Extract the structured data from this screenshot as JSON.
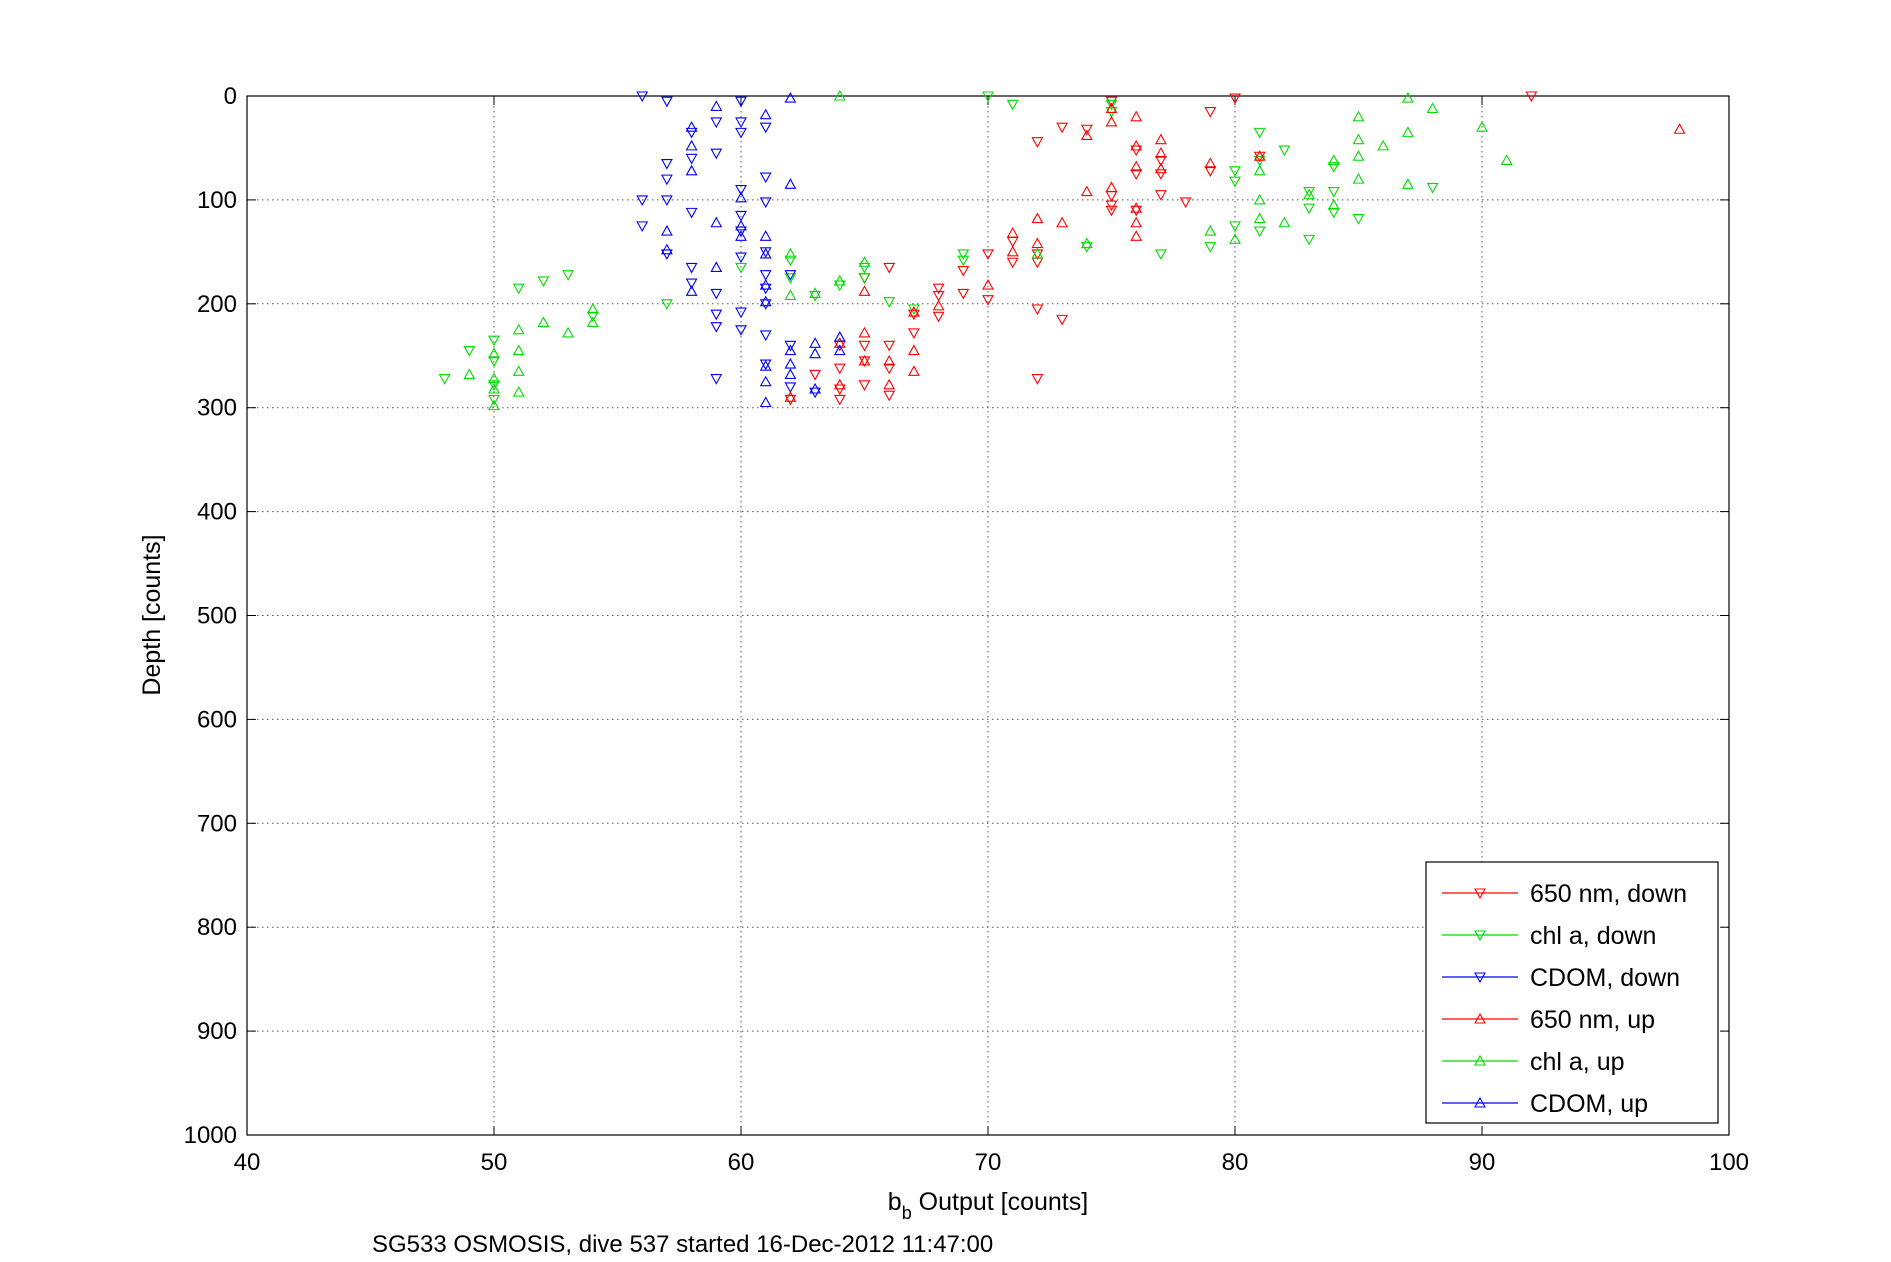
{
  "chart_data": {
    "type": "scatter",
    "xlabel_main": "b",
    "xlabel_sub": "b",
    "xlabel_rest": " Output [counts]",
    "ylabel": "Depth [counts]",
    "caption": "SG533 OSMOSIS, dive 537 started 16-Dec-2012 11:47:00",
    "xlim": [
      40,
      100
    ],
    "ylim": [
      0,
      1000
    ],
    "y_reversed": true,
    "grid": true,
    "legend_position": "bottom-right",
    "x_ticks": [
      "40",
      "50",
      "60",
      "70",
      "80",
      "90",
      "100"
    ],
    "y_ticks": [
      "0",
      "100",
      "200",
      "300",
      "400",
      "500",
      "600",
      "700",
      "800",
      "900",
      "1000"
    ],
    "series": [
      {
        "name": "650 nm, down",
        "color": "#ff0000",
        "marker": "triangle-down",
        "points": [
          [
            62,
            292
          ],
          [
            63,
            268
          ],
          [
            64,
            262
          ],
          [
            64,
            282
          ],
          [
            64,
            292
          ],
          [
            64,
            240
          ],
          [
            65,
            255
          ],
          [
            65,
            240
          ],
          [
            65,
            278
          ],
          [
            65,
            175
          ],
          [
            66,
            240
          ],
          [
            66,
            262
          ],
          [
            66,
            288
          ],
          [
            66,
            165
          ],
          [
            67,
            228
          ],
          [
            67,
            210
          ],
          [
            68,
            192
          ],
          [
            68,
            212
          ],
          [
            68,
            185
          ],
          [
            69,
            190
          ],
          [
            69,
            168
          ],
          [
            70,
            196
          ],
          [
            70,
            152
          ],
          [
            71,
            140
          ],
          [
            71,
            160
          ],
          [
            72,
            205
          ],
          [
            72,
            272
          ],
          [
            72,
            160
          ],
          [
            72,
            152
          ],
          [
            72,
            44
          ],
          [
            73,
            215
          ],
          [
            73,
            30
          ],
          [
            74,
            32
          ],
          [
            75,
            96
          ],
          [
            75,
            105
          ],
          [
            75,
            110
          ],
          [
            75,
            5
          ],
          [
            76,
            110
          ],
          [
            76,
            75
          ],
          [
            76,
            52
          ],
          [
            77,
            62
          ],
          [
            77,
            95
          ],
          [
            77,
            75
          ],
          [
            78,
            102
          ],
          [
            79,
            15
          ],
          [
            79,
            72
          ],
          [
            80,
            2
          ],
          [
            81,
            58
          ],
          [
            92,
            0
          ]
        ]
      },
      {
        "name": "chl a, down",
        "color": "#00dd00",
        "marker": "triangle-down",
        "points": [
          [
            48,
            272
          ],
          [
            49,
            245
          ],
          [
            50,
            235
          ],
          [
            50,
            255
          ],
          [
            50,
            278
          ],
          [
            50,
            292
          ],
          [
            51,
            185
          ],
          [
            52,
            178
          ],
          [
            53,
            172
          ],
          [
            54,
            212
          ],
          [
            57,
            200
          ],
          [
            60,
            165
          ],
          [
            62,
            175
          ],
          [
            62,
            158
          ],
          [
            63,
            192
          ],
          [
            64,
            182
          ],
          [
            65,
            165
          ],
          [
            65,
            175
          ],
          [
            66,
            198
          ],
          [
            67,
            205
          ],
          [
            69,
            158
          ],
          [
            69,
            152
          ],
          [
            70,
            0
          ],
          [
            71,
            8
          ],
          [
            74,
            145
          ],
          [
            75,
            8
          ],
          [
            75,
            15
          ],
          [
            77,
            152
          ],
          [
            79,
            145
          ],
          [
            80,
            125
          ],
          [
            80,
            72
          ],
          [
            80,
            82
          ],
          [
            81,
            35
          ],
          [
            81,
            62
          ],
          [
            81,
            130
          ],
          [
            82,
            52
          ],
          [
            83,
            92
          ],
          [
            83,
            108
          ],
          [
            83,
            138
          ],
          [
            84,
            92
          ],
          [
            84,
            112
          ],
          [
            84,
            68
          ],
          [
            85,
            118
          ],
          [
            88,
            88
          ]
        ]
      },
      {
        "name": "CDOM, down",
        "color": "#0000ff",
        "marker": "triangle-down",
        "points": [
          [
            56,
            0
          ],
          [
            56,
            100
          ],
          [
            56,
            125
          ],
          [
            57,
            5
          ],
          [
            57,
            65
          ],
          [
            57,
            80
          ],
          [
            57,
            100
          ],
          [
            57,
            152
          ],
          [
            58,
            35
          ],
          [
            58,
            60
          ],
          [
            58,
            112
          ],
          [
            58,
            165
          ],
          [
            58,
            180
          ],
          [
            59,
            25
          ],
          [
            59,
            55
          ],
          [
            59,
            190
          ],
          [
            59,
            210
          ],
          [
            59,
            222
          ],
          [
            59,
            272
          ],
          [
            60,
            5
          ],
          [
            60,
            25
          ],
          [
            60,
            35
          ],
          [
            60,
            90
          ],
          [
            60,
            115
          ],
          [
            60,
            130
          ],
          [
            60,
            155
          ],
          [
            60,
            208
          ],
          [
            60,
            225
          ],
          [
            61,
            30
          ],
          [
            61,
            78
          ],
          [
            61,
            102
          ],
          [
            61,
            150
          ],
          [
            61,
            172
          ],
          [
            61,
            185
          ],
          [
            61,
            200
          ],
          [
            61,
            230
          ],
          [
            61,
            258
          ],
          [
            62,
            240
          ],
          [
            62,
            280
          ],
          [
            62,
            172
          ],
          [
            63,
            285
          ]
        ]
      },
      {
        "name": "650 nm, up",
        "color": "#ff0000",
        "marker": "triangle-up",
        "points": [
          [
            62,
            290
          ],
          [
            64,
            238
          ],
          [
            64,
            278
          ],
          [
            65,
            228
          ],
          [
            65,
            255
          ],
          [
            65,
            188
          ],
          [
            66,
            278
          ],
          [
            66,
            255
          ],
          [
            67,
            208
          ],
          [
            67,
            245
          ],
          [
            67,
            265
          ],
          [
            68,
            202
          ],
          [
            70,
            182
          ],
          [
            71,
            132
          ],
          [
            71,
            150
          ],
          [
            72,
            118
          ],
          [
            72,
            142
          ],
          [
            73,
            122
          ],
          [
            74,
            92
          ],
          [
            74,
            38
          ],
          [
            75,
            88
          ],
          [
            75,
            25
          ],
          [
            75,
            12
          ],
          [
            76,
            20
          ],
          [
            76,
            108
          ],
          [
            76,
            122
          ],
          [
            76,
            135
          ],
          [
            76,
            48
          ],
          [
            76,
            68
          ],
          [
            77,
            55
          ],
          [
            77,
            42
          ],
          [
            77,
            70
          ],
          [
            79,
            65
          ],
          [
            81,
            58
          ],
          [
            98,
            32
          ]
        ]
      },
      {
        "name": "chl a, up",
        "color": "#00dd00",
        "marker": "triangle-up",
        "points": [
          [
            49,
            268
          ],
          [
            50,
            248
          ],
          [
            50,
            272
          ],
          [
            50,
            282
          ],
          [
            50,
            298
          ],
          [
            51,
            225
          ],
          [
            51,
            245
          ],
          [
            51,
            265
          ],
          [
            51,
            285
          ],
          [
            52,
            218
          ],
          [
            53,
            228
          ],
          [
            54,
            205
          ],
          [
            54,
            218
          ],
          [
            62,
            152
          ],
          [
            62,
            192
          ],
          [
            63,
            190
          ],
          [
            64,
            178
          ],
          [
            64,
            0
          ],
          [
            65,
            160
          ],
          [
            72,
            152
          ],
          [
            74,
            142
          ],
          [
            81,
            118
          ],
          [
            81,
            100
          ],
          [
            81,
            72
          ],
          [
            83,
            95
          ],
          [
            84,
            105
          ],
          [
            84,
            62
          ],
          [
            85,
            42
          ],
          [
            85,
            58
          ],
          [
            85,
            80
          ],
          [
            85,
            20
          ],
          [
            86,
            48
          ],
          [
            87,
            2
          ],
          [
            87,
            35
          ],
          [
            87,
            85
          ],
          [
            88,
            12
          ],
          [
            90,
            30
          ],
          [
            91,
            62
          ],
          [
            79,
            130
          ],
          [
            80,
            138
          ],
          [
            82,
            122
          ]
        ]
      },
      {
        "name": "CDOM, up",
        "color": "#0000ff",
        "marker": "triangle-up",
        "points": [
          [
            57,
            130
          ],
          [
            57,
            148
          ],
          [
            58,
            30
          ],
          [
            58,
            48
          ],
          [
            58,
            72
          ],
          [
            58,
            188
          ],
          [
            59,
            10
          ],
          [
            59,
            122
          ],
          [
            59,
            165
          ],
          [
            60,
            125
          ],
          [
            60,
            98
          ],
          [
            60,
            135
          ],
          [
            61,
            18
          ],
          [
            61,
            135
          ],
          [
            61,
            152
          ],
          [
            61,
            182
          ],
          [
            61,
            198
          ],
          [
            61,
            260
          ],
          [
            61,
            275
          ],
          [
            61,
            295
          ],
          [
            62,
            2
          ],
          [
            62,
            85
          ],
          [
            62,
            245
          ],
          [
            62,
            258
          ],
          [
            62,
            268
          ],
          [
            63,
            238
          ],
          [
            63,
            248
          ],
          [
            63,
            282
          ],
          [
            64,
            232
          ],
          [
            64,
            245
          ]
        ]
      }
    ]
  }
}
